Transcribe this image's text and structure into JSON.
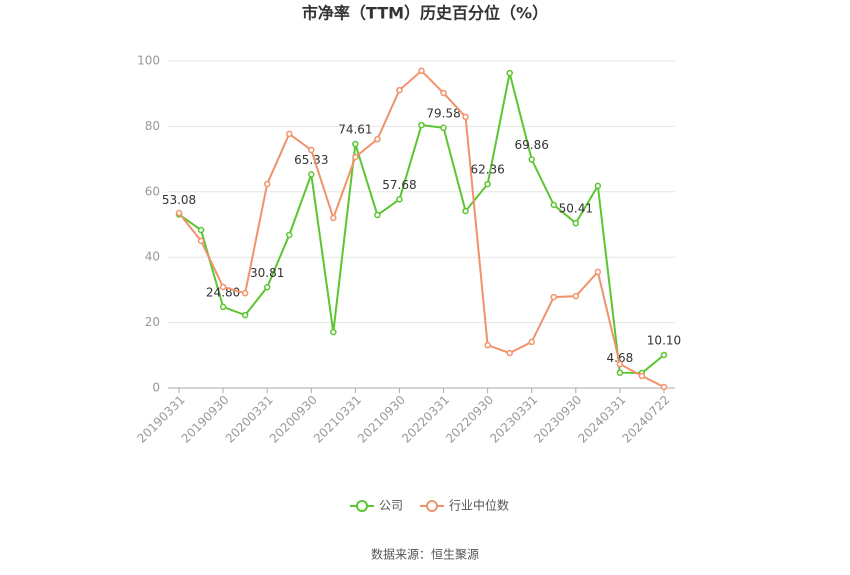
{
  "chart_data": {
    "type": "line",
    "title": "市净率（TTM）历史百分位（%）",
    "source": "数据来源：恒生聚源",
    "categories": [
      "20190331",
      null,
      "20190930",
      null,
      "20200331",
      null,
      "20200930",
      null,
      "20210331",
      null,
      "20210930",
      null,
      "20220331",
      null,
      "20220930",
      null,
      "20230331",
      null,
      "20230930",
      null,
      "20240331",
      null,
      "20240722"
    ],
    "series": [
      {
        "name": "公司",
        "color": "#5cc531",
        "values": [
          53.08,
          48.3,
          24.8,
          22.3,
          30.81,
          46.8,
          65.33,
          17.1,
          74.61,
          52.9,
          57.68,
          80.4,
          79.58,
          54.1,
          62.36,
          96.3,
          69.86,
          56.0,
          50.41,
          61.8,
          4.68,
          4.6,
          10.1
        ],
        "value_labels": [
          "53.08",
          null,
          "24.80",
          null,
          "30.81",
          null,
          "65.33",
          null,
          "74.61",
          null,
          "57.68",
          null,
          "79.58",
          null,
          "62.36",
          null,
          "69.86",
          null,
          "50.41",
          null,
          "4.68",
          null,
          "10.10"
        ]
      },
      {
        "name": "行业中位数",
        "color": "#f0926a",
        "values": [
          53.5,
          45.0,
          30.9,
          29.0,
          62.4,
          77.7,
          72.8,
          52.0,
          70.6,
          76.1,
          91.1,
          97.0,
          90.2,
          82.9,
          13.1,
          10.7,
          14.1,
          27.8,
          28.1,
          35.5,
          7.3,
          3.7,
          0.3
        ]
      }
    ],
    "ylim": [
      0,
      100
    ],
    "yticks": [
      0,
      20,
      40,
      60,
      80,
      100
    ],
    "grid": true,
    "legend": "bottom"
  }
}
